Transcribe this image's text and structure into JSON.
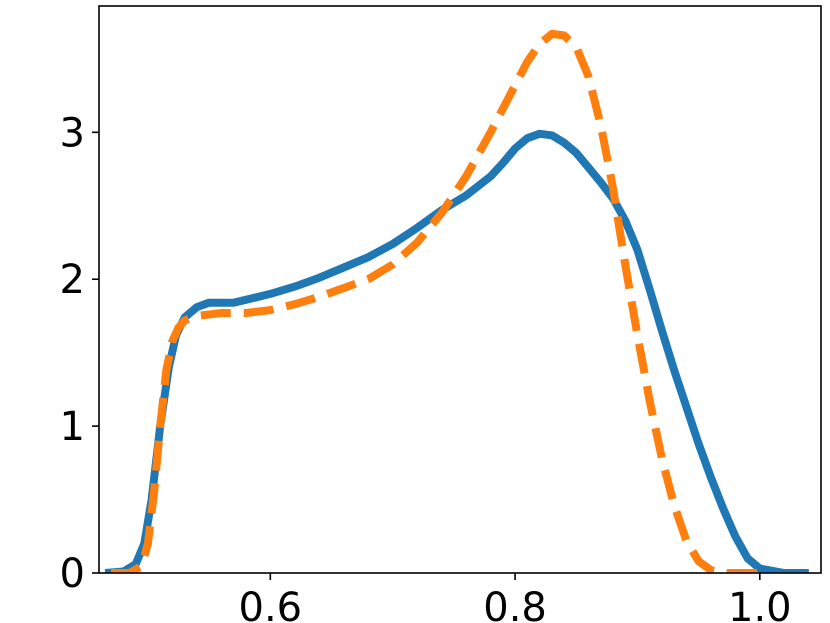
{
  "chart_data": {
    "type": "line",
    "title": "",
    "xlabel": "",
    "ylabel": "",
    "xlim": [
      0.46,
      1.05
    ],
    "ylim": [
      0,
      3.86
    ],
    "grid": false,
    "xticks": [
      {
        "value": 0.6,
        "label": "0.6"
      },
      {
        "value": 0.8,
        "label": "0.8"
      },
      {
        "value": 1.0,
        "label": "1.0"
      }
    ],
    "yticks": [
      {
        "value": 0,
        "label": "0"
      },
      {
        "value": 1,
        "label": "1"
      },
      {
        "value": 2,
        "label": "2"
      },
      {
        "value": 3,
        "label": "3"
      }
    ],
    "series": [
      {
        "color": "#1f77b4",
        "style": "solid",
        "x": [
          0.465,
          0.48,
          0.49,
          0.497,
          0.503,
          0.51,
          0.517,
          0.523,
          0.53,
          0.54,
          0.55,
          0.56,
          0.57,
          0.58,
          0.6,
          0.62,
          0.64,
          0.66,
          0.68,
          0.7,
          0.72,
          0.74,
          0.76,
          0.78,
          0.79,
          0.8,
          0.81,
          0.82,
          0.83,
          0.84,
          0.85,
          0.86,
          0.87,
          0.88,
          0.89,
          0.9,
          0.91,
          0.92,
          0.93,
          0.94,
          0.95,
          0.96,
          0.97,
          0.98,
          0.99,
          1.0,
          1.02,
          1.04
        ],
        "y": [
          0.0,
          0.01,
          0.06,
          0.2,
          0.5,
          1.0,
          1.4,
          1.62,
          1.74,
          1.81,
          1.84,
          1.84,
          1.84,
          1.86,
          1.9,
          1.95,
          2.01,
          2.08,
          2.15,
          2.24,
          2.35,
          2.47,
          2.57,
          2.7,
          2.79,
          2.89,
          2.96,
          2.99,
          2.98,
          2.93,
          2.86,
          2.76,
          2.66,
          2.55,
          2.4,
          2.2,
          1.93,
          1.65,
          1.38,
          1.13,
          0.88,
          0.65,
          0.44,
          0.25,
          0.1,
          0.03,
          0.0,
          0.0
        ]
      },
      {
        "color": "#ff7f0e",
        "style": "dashed",
        "x": [
          0.47,
          0.485,
          0.495,
          0.5,
          0.505,
          0.51,
          0.515,
          0.52,
          0.525,
          0.53,
          0.54,
          0.55,
          0.56,
          0.57,
          0.58,
          0.6,
          0.62,
          0.64,
          0.66,
          0.68,
          0.7,
          0.72,
          0.74,
          0.76,
          0.78,
          0.79,
          0.8,
          0.81,
          0.82,
          0.83,
          0.84,
          0.85,
          0.86,
          0.87,
          0.88,
          0.89,
          0.9,
          0.91,
          0.92,
          0.93,
          0.94,
          0.95,
          0.96,
          0.97,
          0.98,
          1.0
        ],
        "y": [
          0.0,
          0.0,
          0.05,
          0.2,
          0.55,
          1.0,
          1.38,
          1.58,
          1.67,
          1.72,
          1.75,
          1.76,
          1.77,
          1.77,
          1.77,
          1.79,
          1.83,
          1.88,
          1.94,
          2.0,
          2.1,
          2.25,
          2.45,
          2.7,
          3.0,
          3.16,
          3.32,
          3.48,
          3.6,
          3.67,
          3.66,
          3.58,
          3.38,
          3.05,
          2.62,
          2.1,
          1.62,
          1.17,
          0.78,
          0.46,
          0.22,
          0.08,
          0.02,
          0.0,
          0.0,
          0.0
        ]
      }
    ]
  }
}
